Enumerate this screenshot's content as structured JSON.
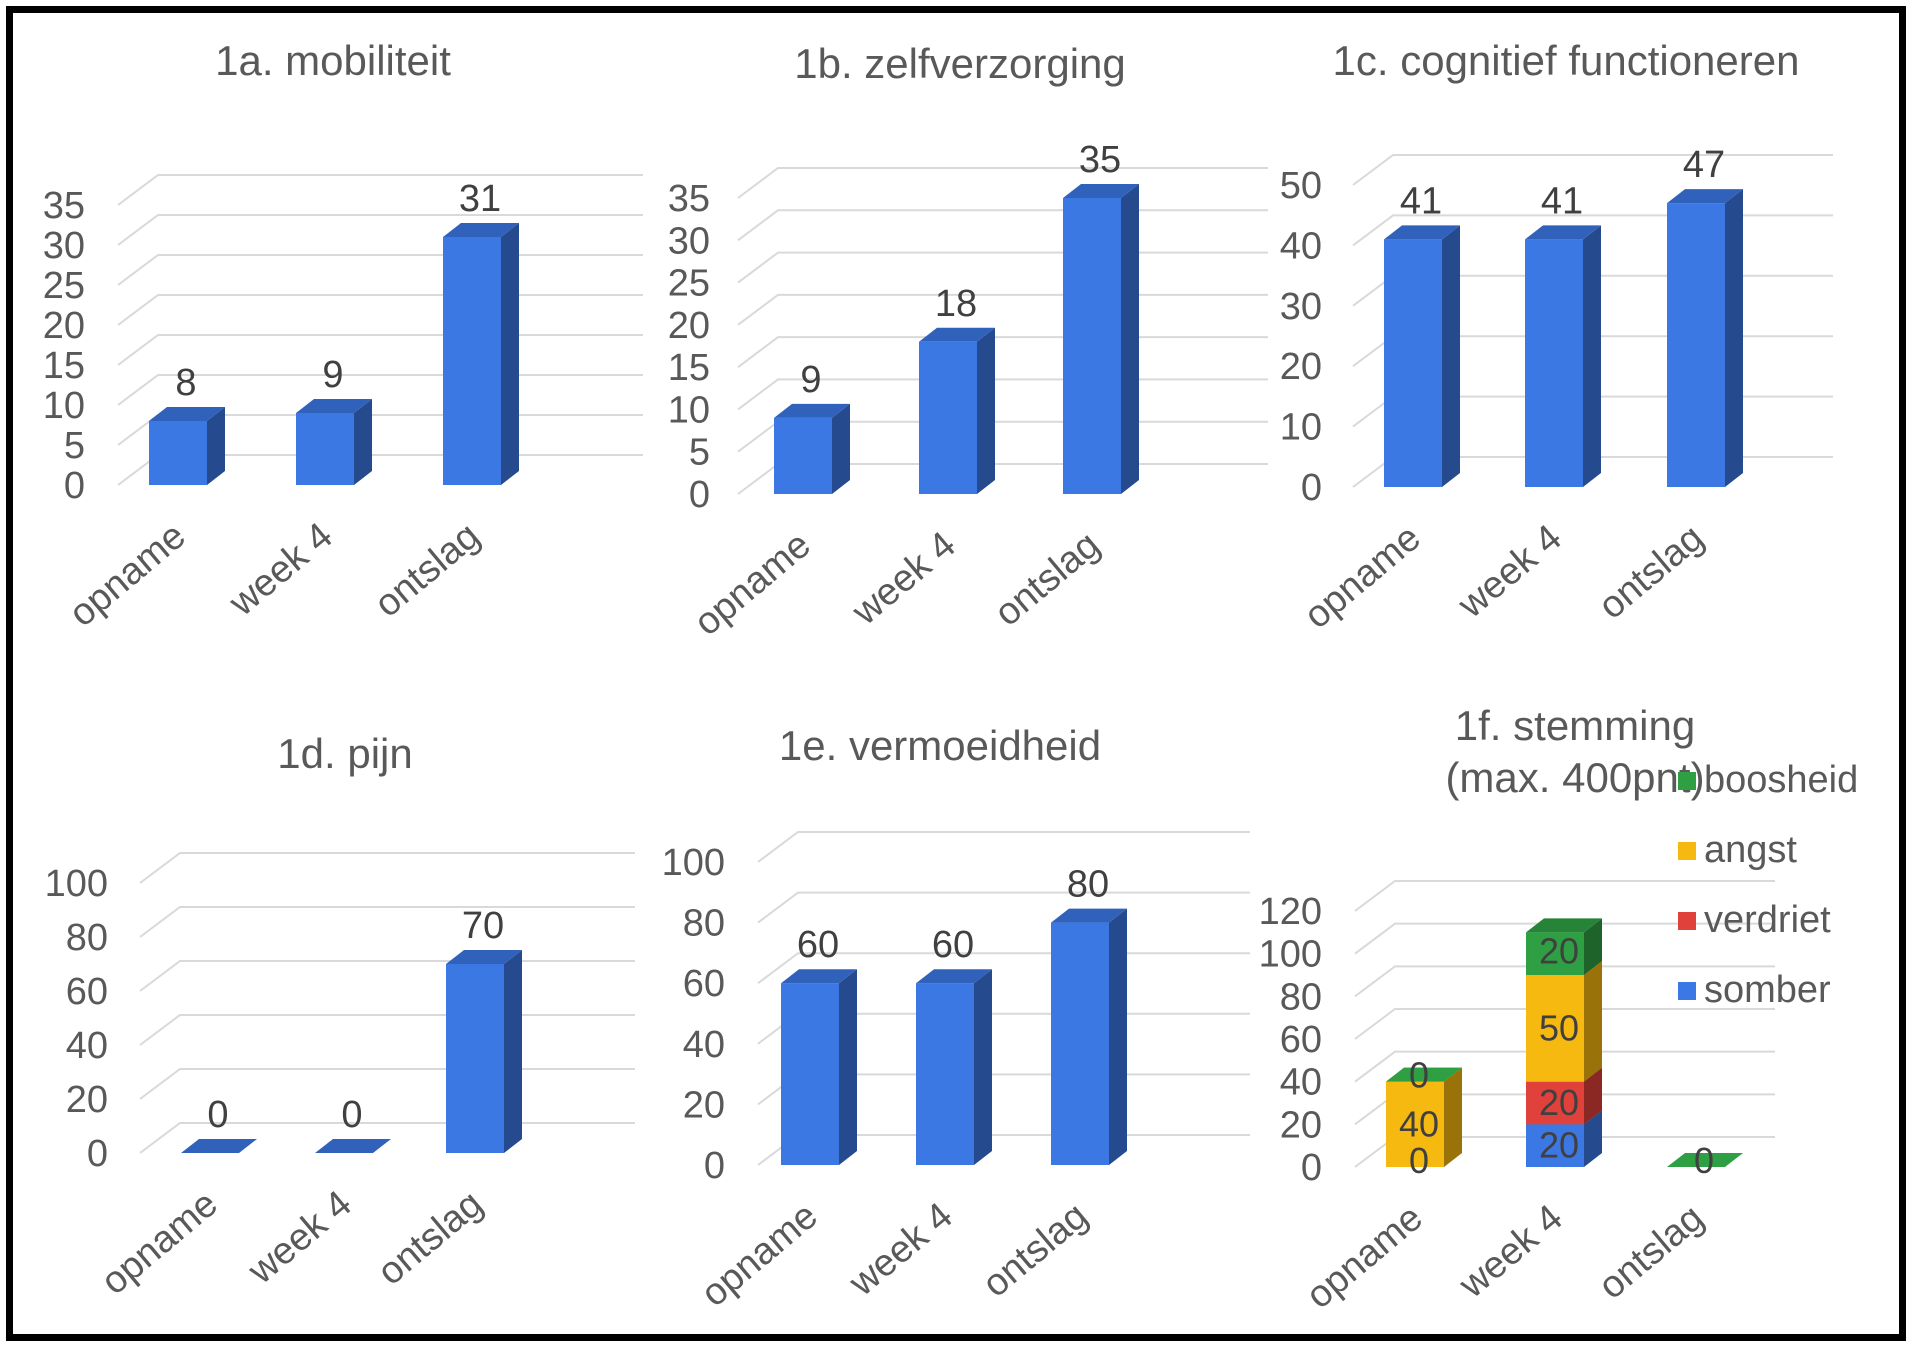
{
  "chart_data": [
    {
      "type": "bar",
      "title": "1a. mobiliteit",
      "categories": [
        "opname",
        "week 4",
        "ontslag"
      ],
      "values": [
        8,
        9,
        31
      ],
      "yticks": [
        0,
        5,
        10,
        15,
        20,
        25,
        30,
        35
      ],
      "ylim": [
        0,
        35
      ],
      "color": "#3c78e4",
      "grid": true,
      "three_d": true
    },
    {
      "type": "bar",
      "title": "1b. zelfverzorging",
      "categories": [
        "opname",
        "week 4",
        "ontslag"
      ],
      "values": [
        9,
        18,
        35
      ],
      "yticks": [
        0,
        5,
        10,
        15,
        20,
        25,
        30,
        35
      ],
      "ylim": [
        0,
        35
      ],
      "color": "#3c78e4",
      "grid": true,
      "three_d": true
    },
    {
      "type": "bar",
      "title": "1c. cognitief functioneren",
      "categories": [
        "opname",
        "week 4",
        "ontslag"
      ],
      "values": [
        41,
        41,
        47
      ],
      "yticks": [
        0,
        10,
        20,
        30,
        40,
        50
      ],
      "ylim": [
        0,
        50
      ],
      "color": "#3c78e4",
      "grid": true,
      "three_d": true
    },
    {
      "type": "bar",
      "title": "1d. pijn",
      "categories": [
        "opname",
        "week 4",
        "ontslag"
      ],
      "values": [
        0,
        0,
        70
      ],
      "yticks": [
        0,
        20,
        40,
        60,
        80,
        100
      ],
      "ylim": [
        0,
        100
      ],
      "color": "#3c78e4",
      "grid": true,
      "three_d": true
    },
    {
      "type": "bar",
      "title": "1e. vermoeidheid",
      "categories": [
        "opname",
        "week 4",
        "ontslag"
      ],
      "values": [
        60,
        60,
        80
      ],
      "yticks": [
        0,
        20,
        40,
        60,
        80,
        100
      ],
      "ylim": [
        0,
        100
      ],
      "color": "#3c78e4",
      "grid": true,
      "three_d": true
    },
    {
      "type": "stacked-bar",
      "title": "1f. stemming",
      "subtitle": "(max. 400pnt)",
      "categories": [
        "opname",
        "week 4",
        "ontslag"
      ],
      "series": [
        {
          "name": "somber",
          "color": "#3c78e4",
          "values": [
            0,
            20,
            0
          ]
        },
        {
          "name": "verdriet",
          "color": "#e0413a",
          "values": [
            0,
            20,
            0
          ]
        },
        {
          "name": "angst",
          "color": "#f6b90f",
          "values": [
            40,
            50,
            0
          ]
        },
        {
          "name": "boosheid",
          "color": "#2ea043",
          "values": [
            0,
            20,
            0
          ]
        }
      ],
      "shown_labels": [
        [
          "0",
          "40",
          "0"
        ],
        [
          "20",
          "20",
          "50",
          "20"
        ],
        [
          "0"
        ]
      ],
      "yticks": [
        0,
        20,
        40,
        60,
        80,
        100,
        120
      ],
      "ylim": [
        0,
        120
      ],
      "legend": "right",
      "grid": true,
      "three_d": true
    }
  ]
}
